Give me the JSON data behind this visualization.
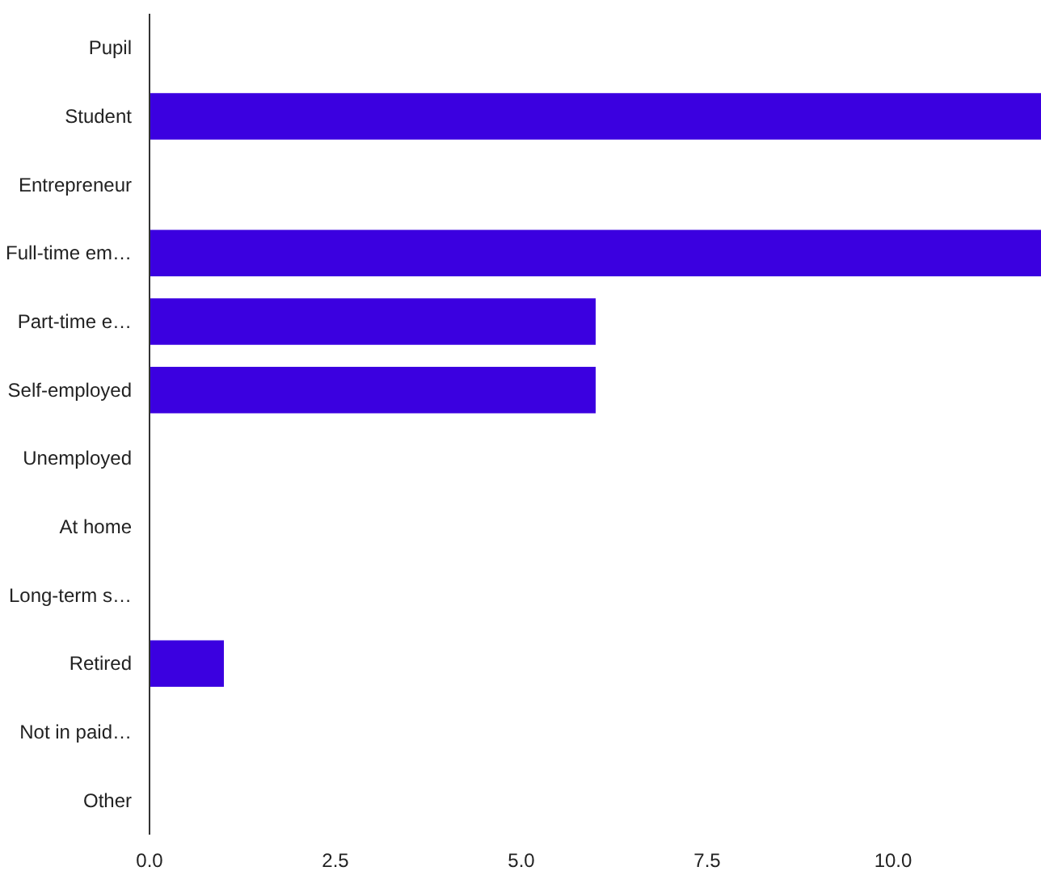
{
  "chart_data": {
    "type": "bar",
    "orientation": "horizontal",
    "categories": [
      "Pupil",
      "Student",
      "Entrepreneur",
      "Full-time em…",
      "Part-time e…",
      "Self-employed",
      "Unemployed",
      "At home",
      "Long-term s…",
      "Retired",
      "Not in paid…",
      "Other"
    ],
    "values": [
      0,
      12,
      0,
      12,
      6,
      6,
      0,
      0,
      0,
      1,
      0,
      0
    ],
    "color": "#3b00e0",
    "xlim": [
      0,
      12
    ],
    "xticks": [
      {
        "value": 0,
        "label": "0.0"
      },
      {
        "value": 2.5,
        "label": "2.5"
      },
      {
        "value": 5,
        "label": "5.0"
      },
      {
        "value": 7.5,
        "label": "7.5"
      },
      {
        "value": 10,
        "label": "10.0"
      }
    ],
    "grid": false
  }
}
